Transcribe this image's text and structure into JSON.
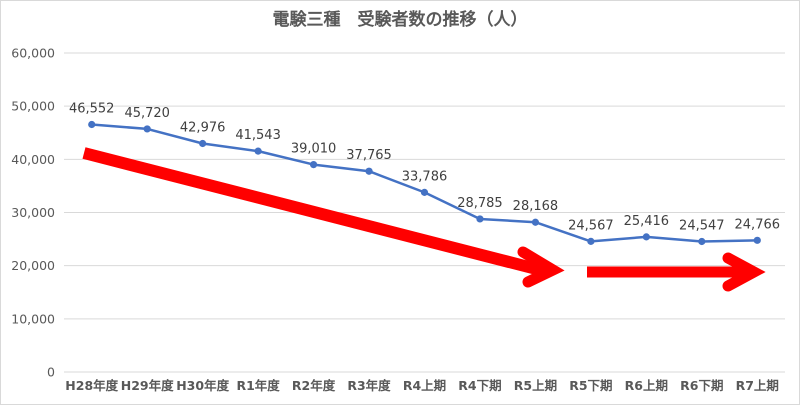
{
  "chart_data": {
    "type": "line",
    "title": "電験三種　受験者数の推移（人）",
    "xlabel": "",
    "ylabel": "",
    "ylim": [
      0,
      60000
    ],
    "yticks": [
      0,
      10000,
      20000,
      30000,
      40000,
      50000,
      60000
    ],
    "ytick_labels": [
      "0",
      "10,000",
      "20,000",
      "30,000",
      "40,000",
      "50,000",
      "60,000"
    ],
    "grid": true,
    "legend": null,
    "categories": [
      "H28年度",
      "H29年度",
      "H30年度",
      "R1年度",
      "R2年度",
      "R3年度",
      "R4上期",
      "R4下期",
      "R5上期",
      "R5下期",
      "R6上期",
      "R6下期",
      "R7上期"
    ],
    "series": [
      {
        "name": "受験者数",
        "color": "#4472c4",
        "values": [
          46552,
          45720,
          42976,
          41543,
          39010,
          37765,
          33786,
          28785,
          28168,
          24567,
          25416,
          24547,
          24766
        ],
        "data_labels": [
          "46,552",
          "45,720",
          "42,976",
          "41,543",
          "39,010",
          "37,765",
          "33,786",
          "28,785",
          "28,168",
          "24,567",
          "25,416",
          "24,547",
          "24,766"
        ]
      }
    ],
    "annotations": [
      {
        "type": "arrow",
        "color": "#ff0000",
        "description": "decreasing trend arrow from H28年度 to R5上期"
      },
      {
        "type": "arrow",
        "color": "#ff0000",
        "description": "flat trend arrow from R5下期 to R7上期"
      }
    ]
  },
  "colors": {
    "line": "#4472c4",
    "arrow": "#ff0000",
    "grid": "#d9d9d9",
    "text": "#595959"
  }
}
